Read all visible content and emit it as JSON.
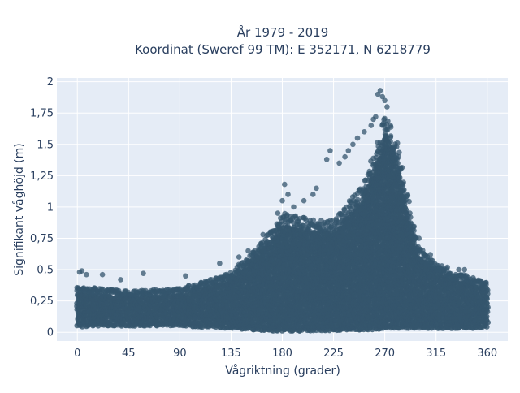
{
  "chart_data": {
    "type": "scatter",
    "title": "År 1979 - 2019",
    "subtitle": "Koordinat (Sweref 99 TM): E 352171, N 6218779",
    "xlabel": "Vågriktning (grader)",
    "ylabel": "Signifikant våghöjd (m)",
    "xlim": [
      -18,
      378
    ],
    "ylim": [
      -0.07,
      2.03
    ],
    "x_ticks": [
      0,
      45,
      90,
      135,
      180,
      225,
      270,
      315,
      360
    ],
    "x_tick_labels": [
      "0",
      "45",
      "90",
      "135",
      "180",
      "225",
      "270",
      "315",
      "360"
    ],
    "y_ticks": [
      0,
      0.25,
      0.5,
      0.75,
      1,
      1.25,
      1.5,
      1.75,
      2
    ],
    "y_tick_labels": [
      "0",
      "0,25",
      "0,5",
      "0,75",
      "1",
      "1,25",
      "1,5",
      "1,75",
      "2"
    ],
    "grid": true,
    "background": "#e5ecf6",
    "marker_color": "#34566d",
    "envelope": {
      "direction_deg": [
        0,
        20,
        45,
        90,
        135,
        150,
        170,
        180,
        200,
        225,
        250,
        265,
        270,
        280,
        290,
        300,
        315,
        330,
        345,
        360
      ],
      "dense_max_m": [
        0.32,
        0.3,
        0.28,
        0.3,
        0.42,
        0.55,
        0.72,
        0.85,
        0.82,
        0.8,
        1.05,
        1.4,
        1.6,
        1.4,
        0.95,
        0.6,
        0.5,
        0.42,
        0.4,
        0.35
      ],
      "dense_min_m": [
        0.04,
        0.05,
        0.05,
        0.05,
        0.03,
        0.02,
        0.01,
        0.01,
        0.01,
        0.01,
        0.02,
        0.02,
        0.03,
        0.03,
        0.03,
        0.03,
        0.03,
        0.03,
        0.03,
        0.04
      ]
    },
    "outliers": [
      {
        "x": 2,
        "y": 0.48
      },
      {
        "x": 4,
        "y": 0.49
      },
      {
        "x": 8,
        "y": 0.46
      },
      {
        "x": 22,
        "y": 0.46
      },
      {
        "x": 38,
        "y": 0.42
      },
      {
        "x": 58,
        "y": 0.47
      },
      {
        "x": 95,
        "y": 0.45
      },
      {
        "x": 125,
        "y": 0.55
      },
      {
        "x": 142,
        "y": 0.6
      },
      {
        "x": 150,
        "y": 0.65
      },
      {
        "x": 163,
        "y": 0.78
      },
      {
        "x": 170,
        "y": 0.8
      },
      {
        "x": 176,
        "y": 0.95
      },
      {
        "x": 180,
        "y": 1.05
      },
      {
        "x": 182,
        "y": 1.18
      },
      {
        "x": 185,
        "y": 1.1
      },
      {
        "x": 190,
        "y": 1.0
      },
      {
        "x": 199,
        "y": 1.05
      },
      {
        "x": 207,
        "y": 1.1
      },
      {
        "x": 210,
        "y": 1.15
      },
      {
        "x": 219,
        "y": 1.38
      },
      {
        "x": 222,
        "y": 1.45
      },
      {
        "x": 230,
        "y": 1.35
      },
      {
        "x": 235,
        "y": 1.4
      },
      {
        "x": 238,
        "y": 1.45
      },
      {
        "x": 242,
        "y": 1.5
      },
      {
        "x": 246,
        "y": 1.55
      },
      {
        "x": 252,
        "y": 1.6
      },
      {
        "x": 258,
        "y": 1.65
      },
      {
        "x": 260,
        "y": 1.7
      },
      {
        "x": 262,
        "y": 1.72
      },
      {
        "x": 264,
        "y": 1.9
      },
      {
        "x": 266,
        "y": 1.93
      },
      {
        "x": 268,
        "y": 1.88
      },
      {
        "x": 270,
        "y": 1.85
      },
      {
        "x": 272,
        "y": 1.8
      },
      {
        "x": 275,
        "y": 1.65
      },
      {
        "x": 282,
        "y": 1.4
      },
      {
        "x": 290,
        "y": 1.1
      },
      {
        "x": 300,
        "y": 0.75
      },
      {
        "x": 310,
        "y": 0.62
      },
      {
        "x": 325,
        "y": 0.52
      },
      {
        "x": 335,
        "y": 0.5
      },
      {
        "x": 340,
        "y": 0.5
      }
    ]
  }
}
